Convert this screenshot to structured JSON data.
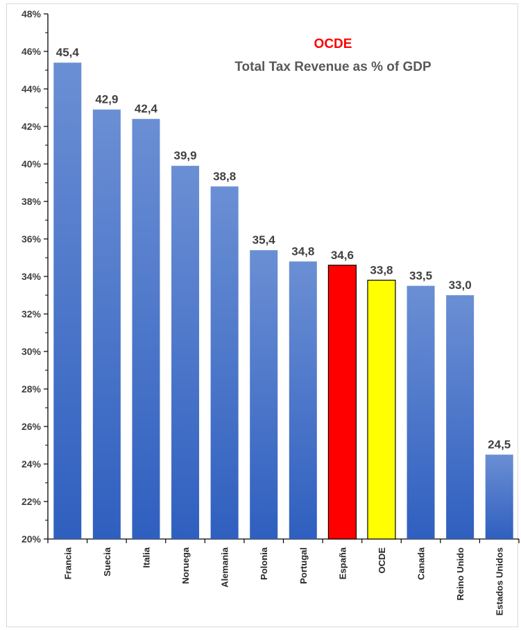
{
  "chart_data": {
    "type": "bar",
    "title": "OCDE",
    "subtitle": "Total Tax Revenue as % of GDP",
    "categories": [
      "Francia",
      "Suecia",
      "Italia",
      "Noruega",
      "Alemania",
      "Polonia",
      "Portugal",
      "España",
      "OCDE",
      "Canada",
      "Reino Unido",
      "Estados Unidos"
    ],
    "values": [
      45.4,
      42.9,
      42.4,
      39.9,
      38.8,
      35.4,
      34.8,
      34.6,
      33.8,
      33.5,
      33.0,
      24.5
    ],
    "value_labels": [
      "45,4",
      "42,9",
      "42,4",
      "39,9",
      "38,8",
      "35,4",
      "34,8",
      "34,6",
      "33,8",
      "33,5",
      "33,0",
      "24,5"
    ],
    "ylim": [
      20,
      48
    ],
    "yticks": [
      20,
      22,
      24,
      26,
      28,
      30,
      32,
      34,
      36,
      38,
      40,
      42,
      44,
      46,
      48
    ],
    "ytick_labels": [
      "20%",
      "22%",
      "24%",
      "26%",
      "28%",
      "30%",
      "32%",
      "34%",
      "36%",
      "38%",
      "40%",
      "42%",
      "44%",
      "46%",
      "48%"
    ],
    "xlabel": "",
    "ylabel": "",
    "grid": false,
    "legend": "none",
    "colors": {
      "default_bar_top": "#6b8fd4",
      "default_bar_bottom": "#2f5fbf",
      "highlight_espana": "#ff0000",
      "highlight_ocde": "#ffff00",
      "title_color": "#ff0000",
      "subtitle_color": "#595959"
    },
    "highlights": {
      "España": "#ff0000",
      "OCDE": "#ffff00"
    }
  }
}
